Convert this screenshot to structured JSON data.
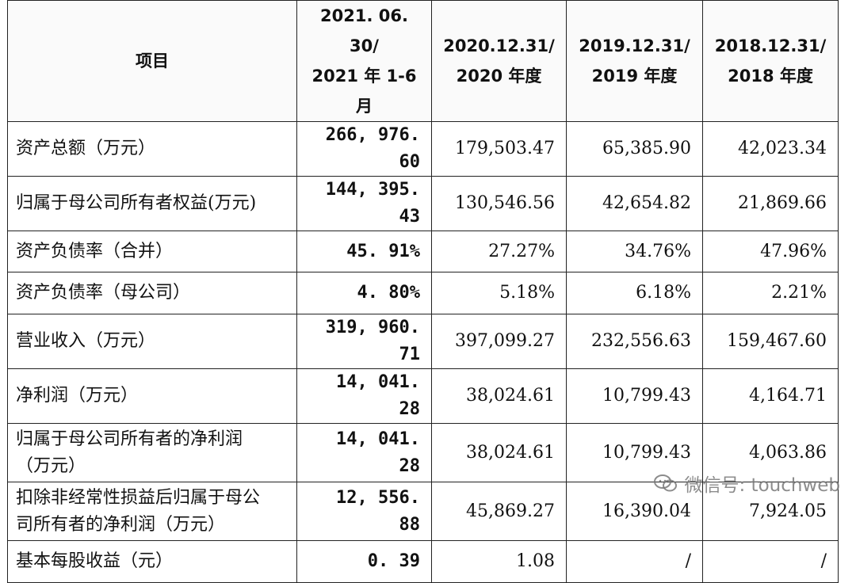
{
  "header": {
    "item": "项目",
    "cols": [
      [
        "2021. 06. 30/",
        "2021 年 1-6 月"
      ],
      [
        "2020.12.31/",
        "2020 年度"
      ],
      [
        "2019.12.31/",
        "2019 年度"
      ],
      [
        "2018.12.31/",
        "2018 年度"
      ]
    ]
  },
  "rows": [
    {
      "label": [
        "资产总额（万元）"
      ],
      "values": [
        "266, 976. 60",
        "179,503.47",
        "65,385.90",
        "42,023.34"
      ]
    },
    {
      "label": [
        "归属于母公司所有者权益(万元)"
      ],
      "values": [
        "144, 395. 43",
        "130,546.56",
        "42,654.82",
        "21,869.66"
      ]
    },
    {
      "label": [
        "资产负债率（合并）"
      ],
      "values": [
        "45. 91%",
        "27.27%",
        "34.76%",
        "47.96%"
      ]
    },
    {
      "label": [
        "资产负债率（母公司）"
      ],
      "values": [
        "4. 80%",
        "5.18%",
        "6.18%",
        "2.21%"
      ]
    },
    {
      "label": [
        "营业收入（万元）"
      ],
      "values": [
        "319, 960. 71",
        "397,099.27",
        "232,556.63",
        "159,467.60"
      ]
    },
    {
      "label": [
        "净利润（万元）"
      ],
      "values": [
        "14, 041. 28",
        "38,024.61",
        "10,799.43",
        "4,164.71"
      ]
    },
    {
      "label": [
        "归属于母公司所有者的净利润",
        "（万元）"
      ],
      "values": [
        "14, 041. 28",
        "38,024.61",
        "10,799.43",
        "4,063.86"
      ]
    },
    {
      "label": [
        "扣除非经常性损益后归属于母公",
        "司所有者的净利润（万元）"
      ],
      "values": [
        "12, 556. 88",
        "45,869.27",
        "16,390.04",
        "7,924.05"
      ]
    },
    {
      "label": [
        "基本每股收益（元）"
      ],
      "values": [
        "0. 39",
        "1.08",
        "/",
        "/"
      ]
    }
  ],
  "watermark": "微信号: touchweb"
}
